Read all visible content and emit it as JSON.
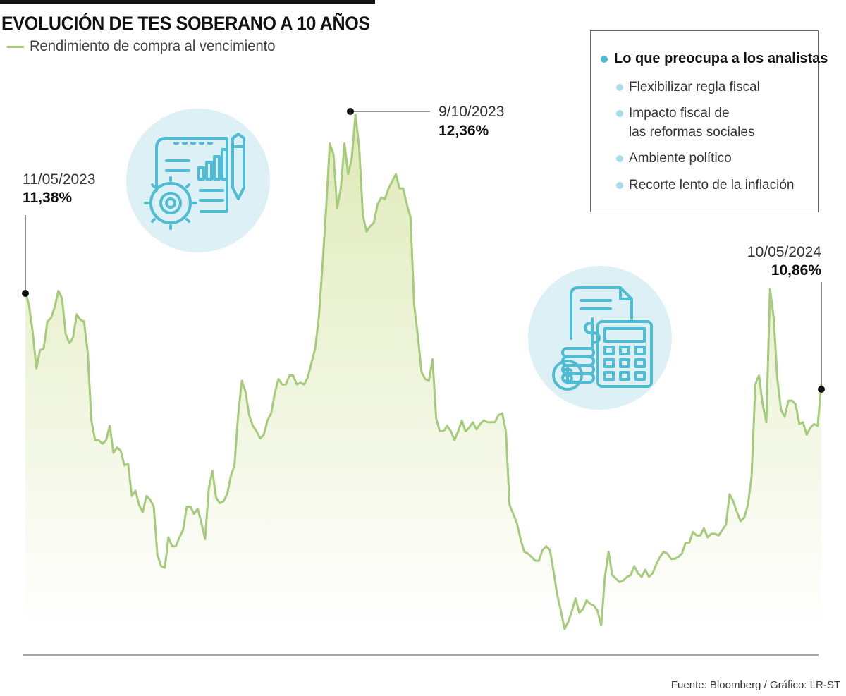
{
  "colors": {
    "line": "#a5cc7a",
    "fill_top": "#dfeab8",
    "fill_bottom": "#ffffff",
    "icon_circle": "#ddf0f6",
    "icon_stroke": "#4fbcd3",
    "bullet_main": "#4fbcd3",
    "bullet_item": "#a9dceb",
    "text": "#1a1a1a"
  },
  "header": {
    "title": "EVOLUCIÓN DE TES SOBERANO A 10 AÑOS",
    "legend_label": "Rendimiento de compra al vencimiento"
  },
  "callout": {
    "heading": "Lo que preocupa a los analistas",
    "items": [
      "Flexibilizar regla fiscal",
      "Impacto fiscal de\nlas reformas sociales",
      "Ambiente político",
      "Recorte lento de la inflación"
    ]
  },
  "icons": [
    "business-report-icon",
    "finance-calculator-icon"
  ],
  "source": "Fuente: Bloomberg / Gráfico: LR-ST",
  "chart_data": {
    "type": "area",
    "series": [
      {
        "name": "Rendimiento de compra al vencimiento",
        "values": [
          11.38,
          11.3,
          11.15,
          10.95,
          11.05,
          11.06,
          11.21,
          11.23,
          11.29,
          11.38,
          11.34,
          11.14,
          11.09,
          11.12,
          11.25,
          11.22,
          11.21,
          11.04,
          10.66,
          10.55,
          10.55,
          10.53,
          10.55,
          10.63,
          10.48,
          10.51,
          10.49,
          10.41,
          10.42,
          10.24,
          10.27,
          10.19,
          10.15,
          10.24,
          10.22,
          10.18,
          9.91,
          9.85,
          9.84,
          10.01,
          9.96,
          9.96,
          10.01,
          10.05,
          10.18,
          10.18,
          10.14,
          10.17,
          10.09,
          10.0,
          10.28,
          10.38,
          10.23,
          10.2,
          10.21,
          10.25,
          10.35,
          10.41,
          10.69,
          10.88,
          10.82,
          10.69,
          10.63,
          10.6,
          10.56,
          10.58,
          10.66,
          10.7,
          10.81,
          10.89,
          10.86,
          10.86,
          10.91,
          10.91,
          10.86,
          10.87,
          10.86,
          10.9,
          10.98,
          11.06,
          11.23,
          11.52,
          11.84,
          12.2,
          12.14,
          11.84,
          11.95,
          12.2,
          12.03,
          12.12,
          12.36,
          12.18,
          11.8,
          11.71,
          11.74,
          11.76,
          11.86,
          11.9,
          11.89,
          11.95,
          11.99,
          12.03,
          11.95,
          11.95,
          11.86,
          11.79,
          11.3,
          11.13,
          10.93,
          10.89,
          10.88,
          11.0,
          10.67,
          10.6,
          10.6,
          10.63,
          10.6,
          10.55,
          10.6,
          10.66,
          10.6,
          10.62,
          10.65,
          10.61,
          10.64,
          10.66,
          10.65,
          10.65,
          10.65,
          10.69,
          10.7,
          10.6,
          10.19,
          10.14,
          10.09,
          10.0,
          9.93,
          9.92,
          9.9,
          9.88,
          9.88,
          9.94,
          9.96,
          9.94,
          9.82,
          9.69,
          9.6,
          9.5,
          9.54,
          9.6,
          9.67,
          9.59,
          9.61,
          9.66,
          9.64,
          9.63,
          9.6,
          9.52,
          9.79,
          9.93,
          9.8,
          9.78,
          9.76,
          9.77,
          9.79,
          9.8,
          9.85,
          9.81,
          9.79,
          9.83,
          9.79,
          9.81,
          9.86,
          9.9,
          9.93,
          9.92,
          9.89,
          9.89,
          9.9,
          9.92,
          9.98,
          9.98,
          10.04,
          10.02,
          10.02,
          10.06,
          10.01,
          10.03,
          10.03,
          10.02,
          10.05,
          10.08,
          10.25,
          10.21,
          10.15,
          10.1,
          10.12,
          10.19,
          10.35,
          10.86,
          10.91,
          10.75,
          10.65,
          11.39,
          11.23,
          10.89,
          10.72,
          10.68,
          10.77,
          10.77,
          10.75,
          10.64,
          10.65,
          10.58,
          10.62,
          10.64,
          10.63,
          10.86
        ]
      }
    ],
    "ylim": [
      9.5,
      12.5
    ],
    "grid": false,
    "legend_position": "top-left",
    "annotations": [
      {
        "date": "11/05/2023",
        "value": "11,38%"
      },
      {
        "date": "9/10/2023",
        "value": "12,36%"
      },
      {
        "date": "10/05/2024",
        "value": "10,86%"
      }
    ]
  }
}
